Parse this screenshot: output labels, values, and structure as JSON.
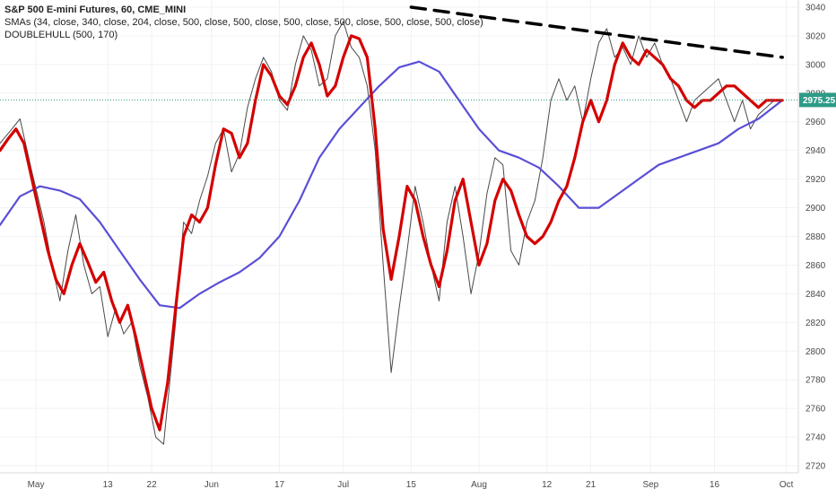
{
  "legend": {
    "title": "S&P 500 E-mini Futures, 60, CME_MINI",
    "sma_label": "SMAs (34, close, 340, close, 204, close, 500, close, 500, close, 500, close, 500, close, 500, close, 500, close)",
    "hull_label": "DOUBLEHULL (500, 170)"
  },
  "colors": {
    "price": "#4a4a4a",
    "hull_fast": "#d40000",
    "sma_slow": "#5a4fd6",
    "sma_slow_thick": "#6f67b8",
    "trendline": "#000000",
    "last_price_bg": "#2e9b85",
    "last_price_line": "#2e9b85",
    "grid": "#f0f2f5",
    "axis_border": "#d9d9d9"
  },
  "last_price": "2975.25",
  "chart_data": {
    "type": "line",
    "title": "S&P 500 E-mini Futures, 60, CME_MINI",
    "xlabel": "",
    "ylabel": "",
    "ylim": [
      2715,
      3045
    ],
    "y_ticks": [
      2720,
      2740,
      2760,
      2780,
      2800,
      2820,
      2840,
      2860,
      2880,
      2900,
      2920,
      2940,
      2960,
      2980,
      3000,
      3020,
      3040
    ],
    "x_tick_labels": [
      "May",
      "13",
      "22",
      "Jun",
      "17",
      "Jul",
      "15",
      "Aug",
      "12",
      "21",
      "Sep",
      "16",
      "Oct"
    ],
    "x_tick_positions": [
      9,
      27,
      38,
      53,
      70,
      86,
      103,
      120,
      137,
      148,
      163,
      179,
      197
    ],
    "x_range": [
      0,
      200
    ],
    "grid": true,
    "series": [
      {
        "name": "",
        "style": "price",
        "x": [
          0,
          3,
          5,
          8,
          11,
          13,
          15,
          17,
          19,
          21,
          23,
          25,
          27,
          29,
          31,
          33,
          35,
          37,
          39,
          41,
          44,
          46,
          48,
          50,
          52,
          54,
          56,
          58,
          60,
          62,
          64,
          66,
          68,
          70,
          72,
          74,
          76,
          78,
          80,
          82,
          84,
          86,
          88,
          90,
          92,
          94,
          96,
          98,
          100,
          102,
          104,
          106,
          108,
          110,
          112,
          114,
          116,
          118,
          120,
          122,
          124,
          126,
          128,
          130,
          132,
          134,
          136,
          138,
          140,
          142,
          144,
          146,
          148,
          150,
          152,
          154,
          156,
          158,
          160,
          162,
          164,
          166,
          168,
          170,
          172,
          174,
          176,
          178,
          180,
          182,
          184,
          186,
          188,
          190,
          192,
          194,
          196
        ],
        "y": [
          2945,
          2955,
          2962,
          2925,
          2890,
          2860,
          2835,
          2870,
          2895,
          2860,
          2840,
          2845,
          2810,
          2830,
          2812,
          2820,
          2790,
          2768,
          2740,
          2735,
          2820,
          2890,
          2882,
          2905,
          2922,
          2945,
          2955,
          2925,
          2938,
          2970,
          2990,
          3005,
          2995,
          2975,
          2968,
          3000,
          3020,
          3010,
          2985,
          2990,
          3020,
          3030,
          3012,
          3005,
          2985,
          2940,
          2860,
          2785,
          2830,
          2870,
          2915,
          2890,
          2860,
          2835,
          2890,
          2915,
          2880,
          2840,
          2868,
          2910,
          2935,
          2930,
          2870,
          2860,
          2890,
          2905,
          2935,
          2975,
          2990,
          2975,
          2985,
          2960,
          2990,
          3015,
          3025,
          3005,
          3012,
          3000,
          3020,
          3005,
          3015,
          3000,
          2990,
          2975,
          2960,
          2975,
          2980,
          2985,
          2990,
          2975,
          2960,
          2975,
          2955,
          2965,
          2970,
          2975,
          2975.25
        ]
      },
      {
        "name": "",
        "style": "hull_fast",
        "x": [
          0,
          2,
          4,
          6,
          8,
          10,
          12,
          14,
          16,
          18,
          20,
          22,
          24,
          26,
          28,
          30,
          32,
          34,
          36,
          38,
          40,
          42,
          44,
          46,
          48,
          50,
          52,
          54,
          56,
          58,
          60,
          62,
          64,
          66,
          68,
          70,
          72,
          74,
          76,
          78,
          80,
          82,
          84,
          86,
          88,
          90,
          92,
          94,
          96,
          98,
          100,
          102,
          104,
          106,
          108,
          110,
          112,
          114,
          116,
          118,
          120,
          122,
          124,
          126,
          128,
          130,
          132,
          134,
          136,
          138,
          140,
          142,
          144,
          146,
          148,
          150,
          152,
          154,
          156,
          158,
          160,
          162,
          164,
          166,
          168,
          170,
          172,
          174,
          176,
          178,
          180,
          182,
          184,
          186,
          188,
          190,
          192,
          194,
          196
        ],
        "y": [
          2940,
          2948,
          2955,
          2945,
          2920,
          2895,
          2870,
          2850,
          2840,
          2860,
          2875,
          2862,
          2848,
          2855,
          2835,
          2820,
          2832,
          2810,
          2785,
          2760,
          2745,
          2778,
          2830,
          2880,
          2895,
          2890,
          2900,
          2930,
          2955,
          2952,
          2935,
          2945,
          2975,
          3000,
          2992,
          2978,
          2972,
          2985,
          3005,
          3015,
          3000,
          2978,
          2985,
          3005,
          3020,
          3018,
          3005,
          2955,
          2885,
          2850,
          2880,
          2915,
          2905,
          2880,
          2860,
          2845,
          2870,
          2905,
          2920,
          2890,
          2860,
          2875,
          2905,
          2920,
          2912,
          2895,
          2880,
          2875,
          2880,
          2890,
          2905,
          2915,
          2935,
          2960,
          2975,
          2960,
          2975,
          3000,
          3015,
          3005,
          3000,
          3010,
          3005,
          3000,
          2990,
          2985,
          2975,
          2970,
          2975,
          2975,
          2980,
          2985,
          2985,
          2980,
          2975,
          2970,
          2975,
          2975,
          2975
        ]
      },
      {
        "name": "",
        "style": "sma_slow",
        "x": [
          0,
          5,
          10,
          15,
          20,
          25,
          30,
          35,
          40,
          45,
          50,
          55,
          60,
          65,
          70,
          75,
          80,
          85,
          90,
          95,
          100,
          105,
          110,
          115,
          120,
          125,
          130,
          135,
          140,
          145,
          150,
          155,
          160,
          165,
          170,
          175,
          180,
          185,
          190,
          196
        ],
        "y": [
          2888,
          2908,
          2915,
          2912,
          2906,
          2890,
          2870,
          2850,
          2832,
          2830,
          2840,
          2848,
          2855,
          2865,
          2880,
          2905,
          2935,
          2955,
          2970,
          2985,
          2998,
          3002,
          2995,
          2975,
          2955,
          2940,
          2935,
          2928,
          2915,
          2900,
          2900,
          2910,
          2920,
          2930,
          2935,
          2940,
          2945,
          2955,
          2962,
          2975
        ]
      },
      {
        "name": "",
        "style": "trendline",
        "x": [
          103,
          196
        ],
        "y": [
          3040,
          3005
        ]
      }
    ]
  }
}
